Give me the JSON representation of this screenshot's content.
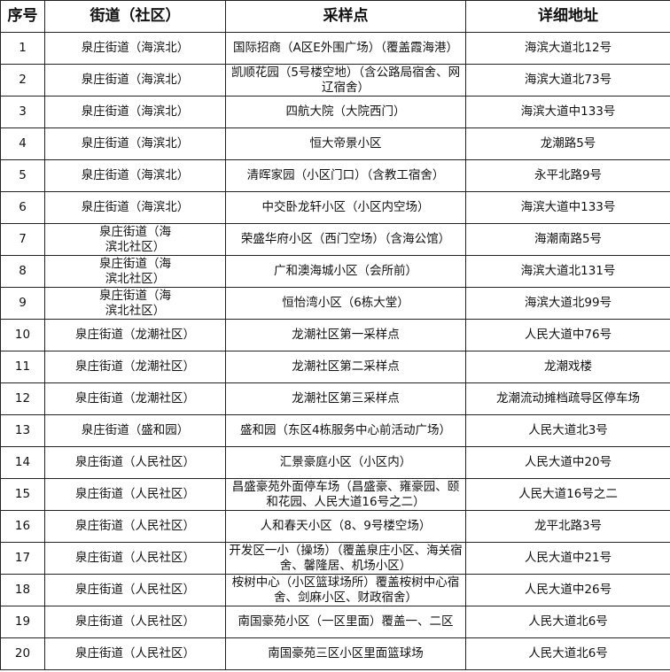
{
  "headers": [
    "序号",
    "街道（社区）",
    "采样点",
    "详细地址"
  ],
  "rows": [
    [
      "1",
      "泉庄街道（海滨北）",
      "国际招商（A区E外围广场）（覆盖霞海港）",
      "海滨大道北12号"
    ],
    [
      "2",
      "泉庄街道（海滨北）",
      "凯顺花园（5号楼空地）（含公路局宿舍、网辽宿舍）",
      "海滨大道北73号"
    ],
    [
      "3",
      "泉庄街道（海滨北）",
      "四航大院（大院西门）",
      "海滨大道中133号"
    ],
    [
      "4",
      "泉庄街道（海滨北）",
      "恒大帝景小区",
      "龙潮路5号"
    ],
    [
      "5",
      "泉庄街道（海滨北）",
      "清晖家园（小区门口）（含教工宿舍）",
      "永平北路9号"
    ],
    [
      "6",
      "泉庄街道（海滨北）",
      "中交卧龙轩小区（小区内空场）",
      "海滨大道中133号"
    ],
    [
      "7",
      "泉庄街道（海滨北社区）",
      "荣盛华府小区（西门空场）（含海公馆）",
      "海潮南路5号"
    ],
    [
      "8",
      "泉庄街道（海滨北社区）",
      "广和澳海城小区（会所前）",
      "海滨大道北131号"
    ],
    [
      "9",
      "泉庄街道（海滨北社区）",
      "恒怡湾小区（6栋大堂）",
      "海滨大道北99号"
    ],
    [
      "10",
      "泉庄街道（龙潮社区）",
      "龙潮社区第一采样点",
      "人民大道中76号"
    ],
    [
      "11",
      "泉庄街道（龙潮社区）",
      "龙潮社区第二采样点",
      "龙潮戏楼"
    ],
    [
      "12",
      "泉庄街道（龙潮社区）",
      "龙潮社区第三采样点",
      "龙潮流动摊档疏导区停车场"
    ],
    [
      "13",
      "泉庄街道（盛和园）",
      "盛和园（东区4栋服务中心前活动广场）",
      "人民大道北3号"
    ],
    [
      "14",
      "泉庄街道（人民社区）",
      "汇景豪庭小区（小区内）",
      "人民大道中20号"
    ],
    [
      "15",
      "泉庄街道（人民社区）",
      "昌盛豪苑外面停车场（昌盛豪、雍豪园、颐和花园、人民大道16号之二）",
      "人民大道16号之二"
    ],
    [
      "16",
      "泉庄街道（人民社区）",
      "人和春天小区（8、9号楼空场）",
      "龙平北路3号"
    ],
    [
      "17",
      "泉庄街道（人民社区）",
      "开发区一小（操场）（覆盖泉庄小区、海关宿舍、馨隆居、机场小区）",
      "人民大道中21号"
    ],
    [
      "18",
      "泉庄街道（人民社区）",
      "桉树中心（小区篮球场所）覆盖桉树中心宿舍、剑麻小区、财政宿舍）",
      "人民大道中26号"
    ],
    [
      "19",
      "泉庄街道（人民社区）",
      "南国豪苑小区（一区里面）覆盖一、二区",
      "人民大道北6号"
    ],
    [
      "20",
      "泉庄街道（人民社区）",
      "南国豪苑三区小区里面篮球场",
      "人民大道北6号"
    ]
  ]
}
